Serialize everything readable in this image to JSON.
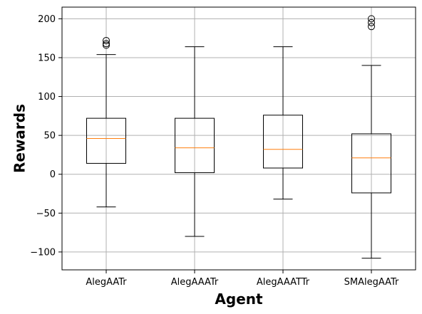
{
  "chart_data": {
    "type": "box",
    "title": "",
    "xlabel": "Agent",
    "ylabel": "Rewards",
    "grid": true,
    "ylim": [
      -123,
      215
    ],
    "yticks": [
      -100,
      -50,
      0,
      50,
      100,
      150,
      200
    ],
    "ytick_labels": [
      "−100",
      "−50",
      "0",
      "50",
      "100",
      "150",
      "200"
    ],
    "categories": [
      "AlegAATr",
      "AlegAAATr",
      "AlegAAATTr",
      "SMAlegAATr"
    ],
    "boxes": [
      {
        "category": "AlegAATr",
        "whisker_low": -42,
        "q1": 14,
        "median": 46,
        "q3": 72,
        "whisker_high": 154,
        "outliers": [
          166,
          168,
          172
        ]
      },
      {
        "category": "AlegAAATr",
        "whisker_low": -80,
        "q1": 2,
        "median": 34,
        "q3": 72,
        "whisker_high": 164,
        "outliers": []
      },
      {
        "category": "AlegAAATTr",
        "whisker_low": -32,
        "q1": 8,
        "median": 32,
        "q3": 76,
        "whisker_high": 164,
        "outliers": []
      },
      {
        "category": "SMAlegAATr",
        "whisker_low": -108,
        "q1": -24,
        "median": 21,
        "q3": 52,
        "whisker_high": 140,
        "outliers": [
          190,
          195,
          200
        ]
      }
    ],
    "colors": {
      "box": "#000000",
      "median": "#ff7f0e",
      "grid": "#b0b0b0",
      "axis": "#000000"
    }
  }
}
